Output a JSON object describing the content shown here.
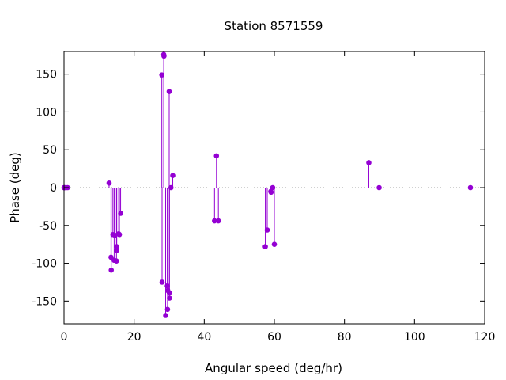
{
  "chart_data": {
    "type": "scatter",
    "style": "impulses-with-points",
    "title": "Station 8571559",
    "xlabel": "Angular speed (deg/hr)",
    "ylabel": "Phase (deg)",
    "xlim": [
      0,
      120
    ],
    "ylim": [
      -180,
      180
    ],
    "xticks": [
      0,
      20,
      40,
      60,
      80,
      100,
      120
    ],
    "yticks": [
      -150,
      -100,
      -50,
      0,
      50,
      100,
      150
    ],
    "grid": false,
    "zero_line": "dotted",
    "color": "#9400d3",
    "points": [
      {
        "x": 0.0,
        "y": 0
      },
      {
        "x": 0.04,
        "y": 0
      },
      {
        "x": 0.08,
        "y": 0
      },
      {
        "x": 0.5,
        "y": 0
      },
      {
        "x": 1.0,
        "y": 0
      },
      {
        "x": 12.85,
        "y": 6
      },
      {
        "x": 13.4,
        "y": -92
      },
      {
        "x": 13.47,
        "y": -109
      },
      {
        "x": 13.94,
        "y": -62
      },
      {
        "x": 14.3,
        "y": -96
      },
      {
        "x": 14.5,
        "y": -63
      },
      {
        "x": 14.96,
        "y": -97
      },
      {
        "x": 15.0,
        "y": -83
      },
      {
        "x": 15.04,
        "y": -78
      },
      {
        "x": 15.59,
        "y": -61
      },
      {
        "x": 15.8,
        "y": -62
      },
      {
        "x": 16.14,
        "y": -34
      },
      {
        "x": 27.97,
        "y": -125
      },
      {
        "x": 27.9,
        "y": 149
      },
      {
        "x": 28.44,
        "y": 176
      },
      {
        "x": 28.51,
        "y": 174
      },
      {
        "x": 28.99,
        "y": -169
      },
      {
        "x": 29.46,
        "y": -130
      },
      {
        "x": 29.53,
        "y": -161
      },
      {
        "x": 29.6,
        "y": -136
      },
      {
        "x": 30.0,
        "y": 127
      },
      {
        "x": 30.04,
        "y": -139
      },
      {
        "x": 30.08,
        "y": -146
      },
      {
        "x": 30.5,
        "y": 0
      },
      {
        "x": 31.02,
        "y": 16
      },
      {
        "x": 42.93,
        "y": -44
      },
      {
        "x": 43.48,
        "y": 42
      },
      {
        "x": 44.03,
        "y": -44
      },
      {
        "x": 57.42,
        "y": -78
      },
      {
        "x": 57.97,
        "y": -56
      },
      {
        "x": 58.98,
        "y": -5
      },
      {
        "x": 59.07,
        "y": -6
      },
      {
        "x": 59.53,
        "y": 0
      },
      {
        "x": 60.0,
        "y": -75
      },
      {
        "x": 86.95,
        "y": 33
      },
      {
        "x": 89.9,
        "y": 0
      },
      {
        "x": 115.94,
        "y": 0
      }
    ]
  }
}
